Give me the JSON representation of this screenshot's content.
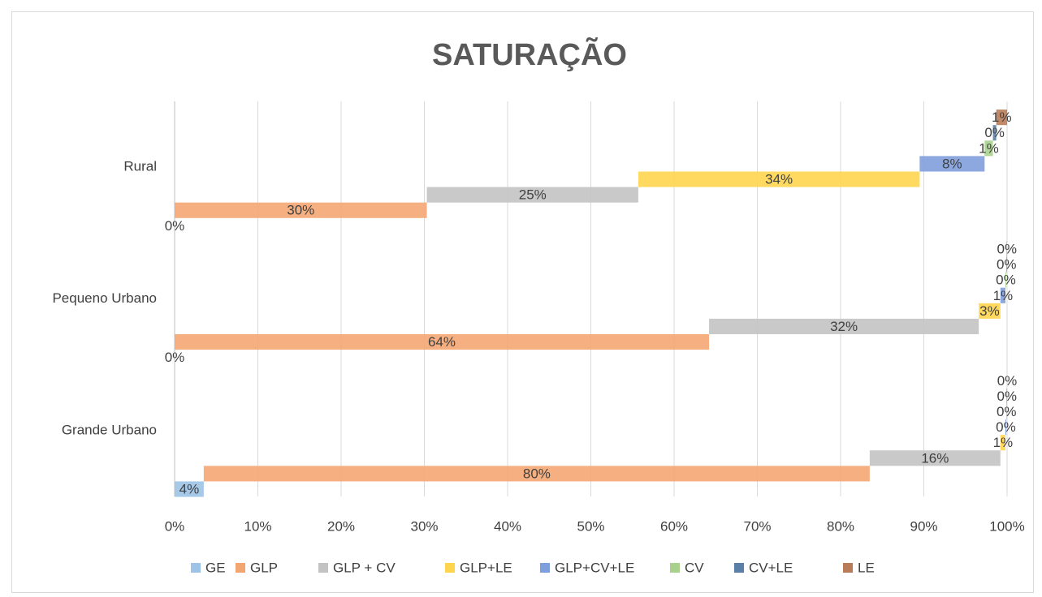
{
  "chart_data": {
    "type": "bar",
    "orientation": "horizontal",
    "layout": "staggered",
    "title": "SATURAÇÃO",
    "categories": [
      "Rural",
      "Pequeno Urbano",
      "Grande Urbano"
    ],
    "series": [
      {
        "name": "GE",
        "color": "#9dc3e6",
        "values": [
          0,
          0,
          3.5
        ],
        "value_labels": [
          "0%",
          "0%",
          "4%"
        ]
      },
      {
        "name": "GLP",
        "color": "#f4a672",
        "values": [
          30.3,
          64.2,
          80
        ],
        "value_labels": [
          "30%",
          "64%",
          "80%"
        ]
      },
      {
        "name": "GLP + CV",
        "color": "#c3c3c3",
        "values": [
          25.4,
          32.4,
          15.7
        ],
        "value_labels": [
          "25%",
          "32%",
          "16%"
        ]
      },
      {
        "name": "GLP+LE",
        "color": "#ffd54f",
        "values": [
          33.8,
          2.6,
          0.6
        ],
        "value_labels": [
          "34%",
          "3%",
          "1%"
        ]
      },
      {
        "name": "GLP+CV+LE",
        "color": "#7f9fdc",
        "values": [
          7.8,
          0.6,
          0.1
        ],
        "value_labels": [
          "8%",
          "1%",
          "0%"
        ]
      },
      {
        "name": "CV",
        "color": "#a9d18e",
        "values": [
          1.0,
          0.1,
          0.05
        ],
        "value_labels": [
          "1%",
          "0%",
          "0%"
        ]
      },
      {
        "name": "CV+LE",
        "color": "#5b80a8",
        "values": [
          0.4,
          0.05,
          0.05
        ],
        "value_labels": [
          "0%",
          "0%",
          "0%"
        ]
      },
      {
        "name": "LE",
        "color": "#b97c58",
        "values": [
          1.3,
          0.05,
          0
        ],
        "value_labels": [
          "1%",
          "0%",
          "0%"
        ]
      }
    ],
    "xlim": [
      0,
      100
    ],
    "xticks": [
      {
        "value": 0,
        "label": "0%"
      },
      {
        "value": 10,
        "label": "10%"
      },
      {
        "value": 20,
        "label": "20%"
      },
      {
        "value": 30,
        "label": "30%"
      },
      {
        "value": 40,
        "label": "40%"
      },
      {
        "value": 50,
        "label": "50%"
      },
      {
        "value": 60,
        "label": "60%"
      },
      {
        "value": 70,
        "label": "70%"
      },
      {
        "value": 80,
        "label": "80%"
      },
      {
        "value": 90,
        "label": "90%"
      },
      {
        "value": 100,
        "label": "100%"
      }
    ],
    "grid": true,
    "legend": "bottom"
  }
}
